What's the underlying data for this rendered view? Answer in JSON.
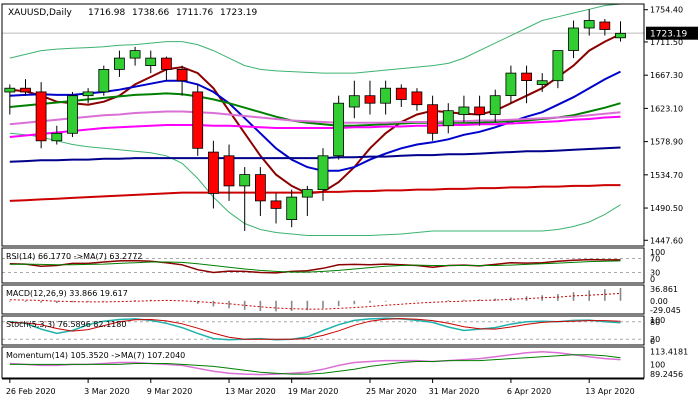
{
  "chart_data": {
    "type": "candlestick",
    "symbol": "XAUUSD,Daily",
    "ohlc_readout": {
      "open": "1716.98",
      "high": "1738.66",
      "low": "1711.76",
      "close": "1723.19"
    },
    "last_price": "1723.19",
    "price_axis_ticks": [
      "1754.40",
      "1711.50",
      "1667.30",
      "1623.10",
      "1578.90",
      "1534.70",
      "1490.50",
      "1447.60"
    ],
    "price_range": [
      1440,
      1762
    ],
    "date_labels": [
      {
        "bar": 0,
        "text": "26 Feb 2020"
      },
      {
        "bar": 5,
        "text": "3 Mar 2020"
      },
      {
        "bar": 9,
        "text": "9 Mar 2020"
      },
      {
        "bar": 14,
        "text": "13 Mar 2020"
      },
      {
        "bar": 18,
        "text": "19 Mar 2020"
      },
      {
        "bar": 23,
        "text": "25 Mar 2020"
      },
      {
        "bar": 27,
        "text": "31 Mar 2020"
      },
      {
        "bar": 32,
        "text": "6 Apr 2020"
      },
      {
        "bar": 37,
        "text": "13 Apr 2020"
      }
    ],
    "candles": [
      [
        1645,
        1655,
        1615,
        1650
      ],
      [
        1650,
        1662,
        1640,
        1645
      ],
      [
        1645,
        1658,
        1570,
        1580
      ],
      [
        1580,
        1600,
        1575,
        1590
      ],
      [
        1590,
        1645,
        1585,
        1640
      ],
      [
        1640,
        1650,
        1630,
        1645
      ],
      [
        1645,
        1680,
        1640,
        1675
      ],
      [
        1675,
        1700,
        1665,
        1690
      ],
      [
        1690,
        1705,
        1680,
        1700
      ],
      [
        1680,
        1700,
        1670,
        1690
      ],
      [
        1690,
        1692,
        1660,
        1675
      ],
      [
        1675,
        1680,
        1640,
        1660
      ],
      [
        1645,
        1655,
        1560,
        1570
      ],
      [
        1565,
        1580,
        1490,
        1510
      ],
      [
        1560,
        1575,
        1500,
        1520
      ],
      [
        1520,
        1545,
        1460,
        1535
      ],
      [
        1535,
        1545,
        1480,
        1500
      ],
      [
        1500,
        1510,
        1470,
        1490
      ],
      [
        1475,
        1515,
        1465,
        1505
      ],
      [
        1505,
        1520,
        1480,
        1515
      ],
      [
        1515,
        1570,
        1500,
        1560
      ],
      [
        1560,
        1640,
        1555,
        1630
      ],
      [
        1625,
        1660,
        1610,
        1640
      ],
      [
        1640,
        1660,
        1615,
        1630
      ],
      [
        1630,
        1660,
        1615,
        1650
      ],
      [
        1650,
        1655,
        1625,
        1635
      ],
      [
        1645,
        1650,
        1620,
        1628
      ],
      [
        1628,
        1640,
        1580,
        1590
      ],
      [
        1600,
        1630,
        1590,
        1620
      ],
      [
        1615,
        1640,
        1605,
        1625
      ],
      [
        1625,
        1640,
        1600,
        1615
      ],
      [
        1615,
        1648,
        1605,
        1640
      ],
      [
        1640,
        1680,
        1630,
        1670
      ],
      [
        1670,
        1680,
        1630,
        1660
      ],
      [
        1655,
        1670,
        1645,
        1660
      ],
      [
        1660,
        1700,
        1650,
        1700
      ],
      [
        1700,
        1740,
        1690,
        1730
      ],
      [
        1730,
        1755,
        1720,
        1740
      ],
      [
        1738,
        1742,
        1720,
        1728
      ],
      [
        1717,
        1739,
        1712,
        1723
      ]
    ],
    "ma_lines": [
      {
        "color": "#8b0000",
        "values": [
          1648,
          1646,
          1640,
          1632,
          1630,
          1628,
          1632,
          1640,
          1655,
          1665,
          1675,
          1678,
          1670,
          1650,
          1620,
          1590,
          1560,
          1535,
          1520,
          1510,
          1512,
          1525,
          1545,
          1570,
          1590,
          1605,
          1615,
          1620,
          1618,
          1616,
          1615,
          1620,
          1630,
          1640,
          1650,
          1665,
          1680,
          1700,
          1712,
          1722
        ]
      },
      {
        "color": "#0000cd",
        "values": [
          1640,
          1641,
          1642,
          1641,
          1641,
          1643,
          1645,
          1648,
          1652,
          1656,
          1660,
          1660,
          1655,
          1645,
          1630,
          1610,
          1590,
          1570,
          1555,
          1545,
          1540,
          1540,
          1545,
          1555,
          1563,
          1570,
          1575,
          1578,
          1582,
          1588,
          1592,
          1598,
          1605,
          1612,
          1618,
          1628,
          1638,
          1650,
          1662,
          1672
        ]
      },
      {
        "color": "#008000",
        "values": [
          1625,
          1627,
          1629,
          1631,
          1633,
          1635,
          1637,
          1639,
          1641,
          1642,
          1643,
          1642,
          1639,
          1635,
          1630,
          1624,
          1618,
          1612,
          1607,
          1604,
          1602,
          1600,
          1600,
          1601,
          1602,
          1603,
          1604,
          1604,
          1604,
          1604,
          1604,
          1605,
          1606,
          1607,
          1609,
          1611,
          1614,
          1619,
          1624,
          1630
        ]
      },
      {
        "color": "#da70d6",
        "values": [
          1602,
          1604,
          1606,
          1608,
          1610,
          1612,
          1614,
          1615,
          1617,
          1618,
          1619,
          1619,
          1618,
          1617,
          1615,
          1613,
          1611,
          1609,
          1607,
          1606,
          1605,
          1604,
          1604,
          1604,
          1604,
          1605,
          1605,
          1605,
          1606,
          1606,
          1607,
          1607,
          1608,
          1609,
          1610,
          1611,
          1612,
          1614,
          1616,
          1618
        ]
      },
      {
        "color": "#ff00ff",
        "values": [
          1585,
          1587,
          1589,
          1591,
          1593,
          1595,
          1597,
          1598,
          1599,
          1600,
          1601,
          1601,
          1601,
          1600,
          1600,
          1599,
          1598,
          1597,
          1597,
          1597,
          1597,
          1597,
          1598,
          1598,
          1599,
          1599,
          1600,
          1600,
          1601,
          1601,
          1602,
          1602,
          1603,
          1604,
          1605,
          1606,
          1608,
          1609,
          1611,
          1612
        ]
      },
      {
        "color": "#00008b",
        "values": [
          1552,
          1553,
          1554,
          1554,
          1555,
          1555,
          1556,
          1556,
          1557,
          1557,
          1557,
          1557,
          1557,
          1557,
          1557,
          1557,
          1557,
          1557,
          1557,
          1557,
          1557,
          1558,
          1558,
          1559,
          1559,
          1560,
          1561,
          1561,
          1562,
          1562,
          1563,
          1564,
          1565,
          1566,
          1566,
          1567,
          1568,
          1569,
          1570,
          1571
        ]
      },
      {
        "color": "#cc0000",
        "values": [
          1500,
          1501,
          1502,
          1503,
          1504,
          1505,
          1506,
          1507,
          1508,
          1509,
          1510,
          1511,
          1511,
          1511,
          1511,
          1511,
          1511,
          1511,
          1511,
          1511,
          1512,
          1512,
          1513,
          1513,
          1514,
          1514,
          1515,
          1515,
          1516,
          1516,
          1517,
          1517,
          1518,
          1518,
          1519,
          1519,
          1520,
          1520,
          1521,
          1521
        ]
      }
    ],
    "bollinger": {
      "color": "#3cb371",
      "upper": [
        1690,
        1695,
        1700,
        1702,
        1703,
        1704,
        1705,
        1707,
        1708,
        1710,
        1712,
        1712,
        1708,
        1700,
        1690,
        1680,
        1675,
        1673,
        1672,
        1671,
        1670,
        1670,
        1670,
        1672,
        1674,
        1676,
        1678,
        1680,
        1683,
        1690,
        1700,
        1710,
        1720,
        1730,
        1740,
        1745,
        1750,
        1755,
        1760,
        1762
      ],
      "lower": [
        1590,
        1588,
        1585,
        1580,
        1575,
        1572,
        1570,
        1568,
        1566,
        1564,
        1560,
        1550,
        1530,
        1505,
        1485,
        1470,
        1462,
        1458,
        1456,
        1454,
        1454,
        1454,
        1454,
        1454,
        1455,
        1456,
        1458,
        1460,
        1460,
        1460,
        1460,
        1460,
        1460,
        1460,
        1460,
        1462,
        1466,
        1472,
        1482,
        1495
      ]
    },
    "indicators": [
      {
        "name": "rsi",
        "label": "RSI(14) 66.1770 ->MA(7) 63.2772",
        "ticks": [
          "100",
          "70",
          "30",
          "0"
        ],
        "range": [
          0,
          100
        ],
        "hlines": [
          70,
          30
        ],
        "line": [
          55,
          54,
          48,
          50,
          56,
          56,
          60,
          63,
          64,
          62,
          58,
          52,
          38,
          30,
          34,
          33,
          30,
          29,
          33,
          35,
          42,
          52,
          53,
          52,
          54,
          52,
          50,
          45,
          50,
          51,
          49,
          53,
          58,
          57,
          58,
          62,
          65,
          67,
          66,
          66
        ],
        "line_color": "#8b0000",
        "signal": [
          53,
          54,
          53,
          52,
          52,
          53,
          54,
          56,
          58,
          60,
          60,
          59,
          55,
          50,
          45,
          40,
          36,
          33,
          31,
          31,
          33,
          36,
          40,
          44,
          48,
          50,
          51,
          50,
          50,
          50,
          50,
          50,
          51,
          53,
          55,
          57,
          59,
          61,
          62,
          63
        ],
        "signal_color": "#008000"
      },
      {
        "name": "macd",
        "label": "MACD(12,26,9) 33.866 19.617",
        "ticks": [
          "36.861",
          "0.00",
          "-29.045"
        ],
        "range": [
          -35,
          42
        ],
        "hist": [
          -2,
          -3,
          -5,
          -6,
          -4,
          -3,
          -2,
          0,
          2,
          3,
          2,
          -1,
          -8,
          -15,
          -20,
          -24,
          -27,
          -28,
          -27,
          -25,
          -20,
          -14,
          -9,
          -5,
          -2,
          0,
          1,
          0,
          2,
          3,
          4,
          6,
          9,
          12,
          15,
          18,
          23,
          28,
          31,
          34
        ],
        "signal": [
          3,
          2,
          1,
          -1,
          -2,
          -3,
          -3,
          -2,
          -1,
          0,
          1,
          0,
          -2,
          -5,
          -8,
          -12,
          -16,
          -19,
          -21,
          -22,
          -22,
          -20,
          -18,
          -15,
          -12,
          -9,
          -6,
          -4,
          -2,
          -1,
          1,
          2,
          4,
          6,
          8,
          10,
          13,
          15,
          17,
          19.6
        ],
        "signal_color": "#cc0000"
      },
      {
        "name": "stoch",
        "label": "Stoch(5,3,3) 76.5896 82.1180",
        "ticks": [
          "100",
          "80",
          "20",
          "0"
        ],
        "range": [
          0,
          100
        ],
        "hlines": [
          80,
          20
        ],
        "line": [
          80,
          75,
          55,
          40,
          50,
          70,
          82,
          88,
          90,
          85,
          75,
          60,
          40,
          22,
          18,
          20,
          22,
          18,
          20,
          28,
          50,
          70,
          85,
          90,
          92,
          90,
          85,
          78,
          62,
          50,
          55,
          60,
          72,
          80,
          82,
          80,
          85,
          86,
          80,
          77
        ],
        "line_color": "#20b2aa",
        "signal": [
          78,
          76,
          70,
          57,
          48,
          53,
          67,
          80,
          87,
          88,
          83,
          73,
          58,
          41,
          27,
          20,
          20,
          20,
          20,
          22,
          33,
          49,
          68,
          82,
          89,
          91,
          89,
          84,
          75,
          63,
          56,
          55,
          62,
          71,
          78,
          81,
          82,
          84,
          84,
          82
        ],
        "signal_color": "#cc0000"
      },
      {
        "name": "momentum",
        "label": "Momentum(14) 105.3520 ->MA(7) 107.2040",
        "ticks": [
          "113.4181",
          "100",
          "89.2456"
        ],
        "range": [
          86,
          118
        ],
        "line": [
          101,
          100,
          99,
          99,
          100,
          100,
          101,
          102,
          102,
          101,
          100,
          99,
          96,
          93,
          91,
          90,
          89.5,
          90,
          91,
          92,
          95,
          99,
          102,
          103,
          104,
          104,
          104,
          103,
          104,
          105,
          106,
          108,
          110,
          112,
          113,
          112,
          110,
          108,
          106,
          105
        ],
        "line_color": "#da70d6",
        "signal": [
          100,
          100,
          100,
          100,
          100,
          100,
          100,
          100,
          101,
          101,
          101,
          100,
          99,
          98,
          96,
          94,
          92,
          91,
          90,
          90,
          91,
          93,
          95,
          98,
          100,
          102,
          103,
          103,
          104,
          104,
          104,
          105,
          106,
          107,
          108,
          109,
          110,
          110,
          109,
          107
        ],
        "signal_color": "#008000"
      }
    ]
  },
  "colors": {
    "up": "#32cd32",
    "down": "#ff0000",
    "frame": "#000000"
  }
}
